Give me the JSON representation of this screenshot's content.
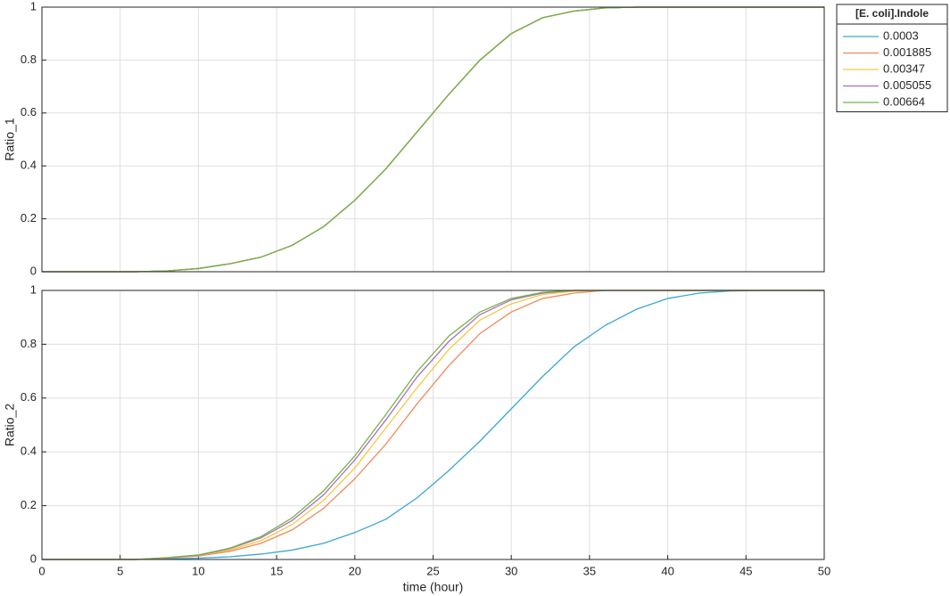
{
  "chart_data": [
    {
      "type": "line",
      "ylabel": "Ratio_1",
      "x": [
        0,
        2,
        4,
        6,
        8,
        10,
        12,
        14,
        16,
        18,
        20,
        22,
        24,
        26,
        28,
        30,
        32,
        34,
        36,
        38,
        40,
        42,
        44,
        46,
        48,
        50
      ],
      "xlim": [
        0,
        50
      ],
      "ylim": [
        0,
        1
      ],
      "yticks": [
        0,
        0.2,
        0.4,
        0.6,
        0.8,
        1
      ],
      "grid": true,
      "legend_title": "[E. coli].Indole",
      "legend": "northeast outside",
      "series": [
        {
          "name": "0.0003",
          "color": "#3aa7d4",
          "values": [
            0,
            0,
            0,
            0,
            0.003,
            0.012,
            0.03,
            0.055,
            0.1,
            0.17,
            0.27,
            0.39,
            0.53,
            0.67,
            0.8,
            0.9,
            0.96,
            0.985,
            0.997,
            1,
            1,
            1,
            1,
            1,
            1,
            1
          ]
        },
        {
          "name": "0.001885",
          "color": "#f08a5d",
          "values": [
            0,
            0,
            0,
            0,
            0.003,
            0.012,
            0.03,
            0.055,
            0.1,
            0.17,
            0.27,
            0.39,
            0.53,
            0.67,
            0.8,
            0.9,
            0.96,
            0.985,
            0.997,
            1,
            1,
            1,
            1,
            1,
            1,
            1
          ]
        },
        {
          "name": "0.00347",
          "color": "#f5c842",
          "values": [
            0,
            0,
            0,
            0,
            0.003,
            0.012,
            0.03,
            0.055,
            0.1,
            0.17,
            0.27,
            0.39,
            0.53,
            0.67,
            0.8,
            0.9,
            0.96,
            0.985,
            0.997,
            1,
            1,
            1,
            1,
            1,
            1,
            1
          ]
        },
        {
          "name": "0.005055",
          "color": "#a66fc2",
          "values": [
            0,
            0,
            0,
            0,
            0.003,
            0.012,
            0.03,
            0.055,
            0.1,
            0.17,
            0.27,
            0.39,
            0.53,
            0.67,
            0.8,
            0.9,
            0.96,
            0.985,
            0.997,
            1,
            1,
            1,
            1,
            1,
            1,
            1
          ]
        },
        {
          "name": "0.00664",
          "color": "#77b347",
          "values": [
            0,
            0,
            0,
            0,
            0.003,
            0.012,
            0.03,
            0.055,
            0.1,
            0.17,
            0.27,
            0.39,
            0.53,
            0.67,
            0.8,
            0.9,
            0.96,
            0.985,
            0.997,
            1,
            1,
            1,
            1,
            1,
            1,
            1
          ]
        }
      ]
    },
    {
      "type": "line",
      "ylabel": "Ratio_2",
      "xlabel": "time (hour)",
      "x": [
        0,
        2,
        4,
        6,
        8,
        10,
        12,
        14,
        16,
        18,
        20,
        22,
        24,
        26,
        28,
        30,
        32,
        34,
        36,
        38,
        40,
        42,
        44,
        46,
        48,
        50
      ],
      "xlim": [
        0,
        50
      ],
      "xticks": [
        0,
        5,
        10,
        15,
        20,
        25,
        30,
        35,
        40,
        45,
        50
      ],
      "ylim": [
        0,
        1
      ],
      "yticks": [
        0,
        0.2,
        0.4,
        0.6,
        0.8,
        1
      ],
      "grid": true,
      "series": [
        {
          "color": "#3aa7d4",
          "values": [
            0,
            0,
            0,
            0,
            0.002,
            0.005,
            0.01,
            0.02,
            0.035,
            0.06,
            0.1,
            0.15,
            0.23,
            0.33,
            0.44,
            0.56,
            0.68,
            0.79,
            0.87,
            0.93,
            0.97,
            0.99,
            0.998,
            1,
            1,
            1
          ]
        },
        {
          "color": "#f08a5d",
          "values": [
            0,
            0,
            0,
            0,
            0.005,
            0.013,
            0.03,
            0.06,
            0.11,
            0.19,
            0.3,
            0.43,
            0.58,
            0.72,
            0.84,
            0.92,
            0.97,
            0.99,
            1,
            1,
            1,
            1,
            1,
            1,
            1,
            1
          ]
        },
        {
          "color": "#f5c842",
          "values": [
            0,
            0,
            0,
            0,
            0.006,
            0.015,
            0.035,
            0.07,
            0.13,
            0.22,
            0.34,
            0.49,
            0.64,
            0.78,
            0.89,
            0.95,
            0.985,
            0.997,
            1,
            1,
            1,
            1,
            1,
            1,
            1,
            1
          ]
        },
        {
          "color": "#a66fc2",
          "values": [
            0,
            0,
            0,
            0,
            0.006,
            0.016,
            0.04,
            0.08,
            0.145,
            0.24,
            0.37,
            0.52,
            0.68,
            0.81,
            0.91,
            0.965,
            0.99,
            1,
            1,
            1,
            1,
            1,
            1,
            1,
            1,
            1
          ]
        },
        {
          "color": "#77b347",
          "values": [
            0,
            0,
            0,
            0,
            0.007,
            0.017,
            0.042,
            0.085,
            0.155,
            0.255,
            0.385,
            0.54,
            0.7,
            0.83,
            0.92,
            0.97,
            0.993,
            1,
            1,
            1,
            1,
            1,
            1,
            1,
            1,
            1
          ]
        }
      ]
    }
  ]
}
